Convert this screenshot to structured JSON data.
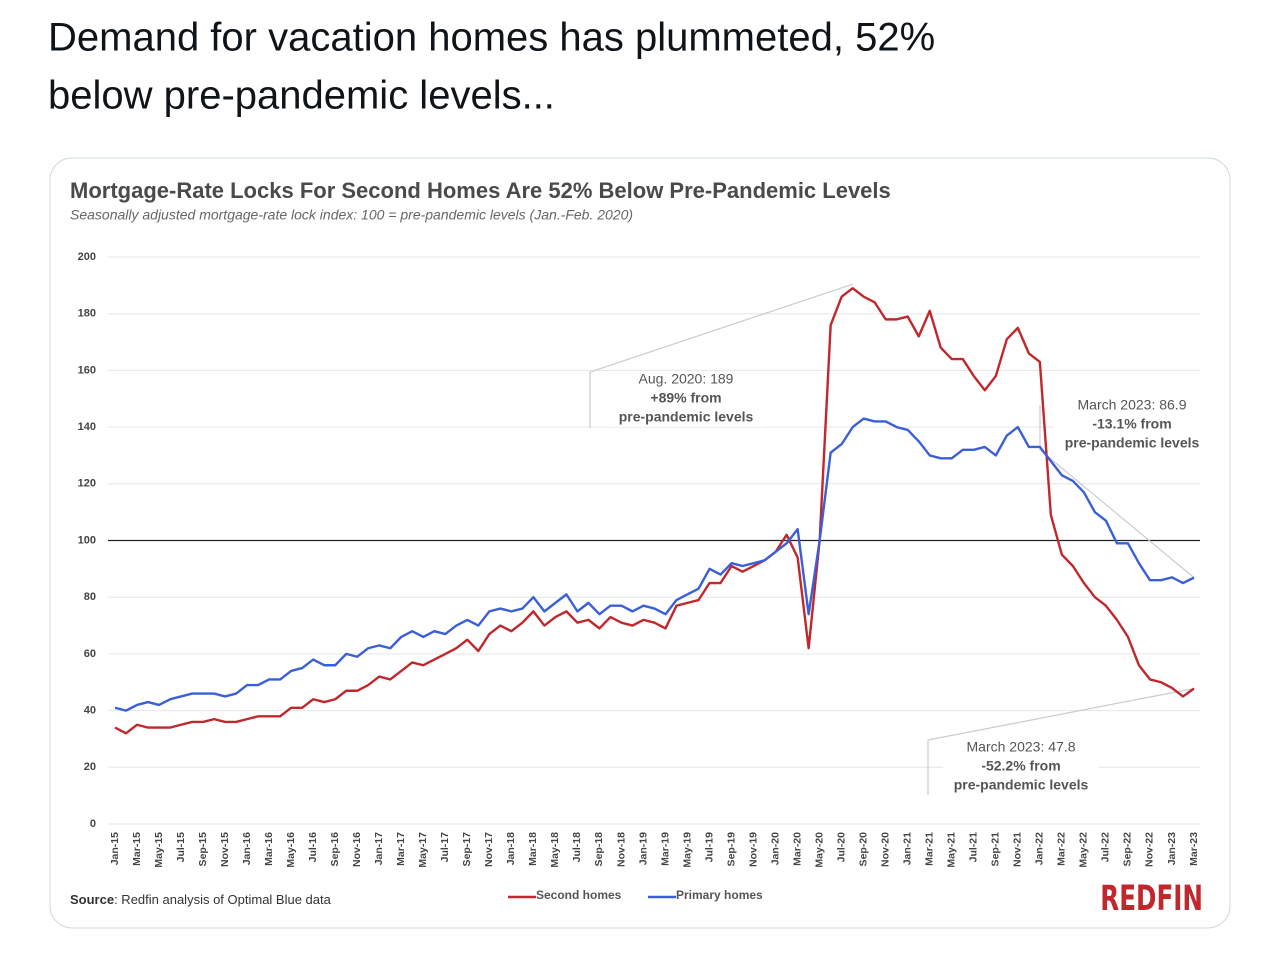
{
  "post": {
    "text": [
      "Demand for vacation homes has plummeted, 52%",
      "below pre-pandemic levels..."
    ]
  },
  "chart_data": {
    "type": "line",
    "title": "Mortgage-Rate Locks For Second Homes Are 52% Below Pre-Pandemic Levels",
    "subtitle": "Seasonally adjusted mortgage-rate lock index: 100 = pre-pandemic levels (Jan.-Feb. 2020)",
    "categories": [
      "Jan-15",
      null,
      "Mar-15",
      null,
      "May-15",
      null,
      "Jul-15",
      null,
      "Sep-15",
      null,
      "Nov-15",
      null,
      "Jan-16",
      null,
      "Mar-16",
      null,
      "May-16",
      null,
      "Jul-16",
      null,
      "Sep-16",
      null,
      "Nov-16",
      null,
      "Jan-17",
      null,
      "Mar-17",
      null,
      "May-17",
      null,
      "Jul-17",
      null,
      "Sep-17",
      null,
      "Nov-17",
      null,
      "Jan-18",
      null,
      "Mar-18",
      null,
      "May-18",
      null,
      "Jul-18",
      null,
      "Sep-18",
      null,
      "Nov-18",
      null,
      "Jan-19",
      null,
      "Mar-19",
      null,
      "May-19",
      null,
      "Jul-19",
      null,
      "Sep-19",
      null,
      "Nov-19",
      null,
      "Jan-20",
      null,
      "Mar-20",
      null,
      "May-20",
      null,
      "Jul-20",
      null,
      "Sep-20",
      null,
      "Nov-20",
      null,
      "Jan-21",
      null,
      "Mar-21",
      null,
      "May-21",
      null,
      "Jul-21",
      null,
      "Sep-21",
      null,
      "Nov-21",
      null,
      "Jan-22",
      null,
      "Mar-22",
      null,
      "May-22",
      null,
      "Jul-22",
      null,
      "Sep-22",
      null,
      "Nov-22",
      null,
      "Jan-23",
      null,
      "Mar-23"
    ],
    "series": [
      {
        "name": "Second homes",
        "color": "#c0282d",
        "values": [
          34,
          32,
          35,
          34,
          34,
          34,
          35,
          36,
          36,
          37,
          36,
          36,
          37,
          38,
          38,
          38,
          41,
          41,
          44,
          43,
          44,
          47,
          47,
          49,
          52,
          51,
          54,
          57,
          56,
          58,
          60,
          62,
          65,
          61,
          67,
          70,
          68,
          71,
          75,
          70,
          73,
          75,
          71,
          72,
          69,
          73,
          71,
          70,
          72,
          71,
          69,
          77,
          78,
          79,
          85,
          85,
          91,
          89,
          91,
          93,
          96,
          102,
          94,
          62,
          100,
          176,
          186,
          189,
          186,
          184,
          178,
          178,
          179,
          172,
          181,
          168,
          164,
          164,
          158,
          153,
          158,
          171,
          175,
          166,
          163,
          109,
          95,
          91,
          85,
          80,
          77,
          72,
          66,
          56,
          51,
          50,
          48,
          45,
          47.8
        ]
      },
      {
        "name": "Primary homes",
        "color": "#3a5fd9",
        "values": [
          41,
          40,
          42,
          43,
          42,
          44,
          45,
          46,
          46,
          46,
          45,
          46,
          49,
          49,
          51,
          51,
          54,
          55,
          58,
          56,
          56,
          60,
          59,
          62,
          63,
          62,
          66,
          68,
          66,
          68,
          67,
          70,
          72,
          70,
          75,
          76,
          75,
          76,
          80,
          75,
          78,
          81,
          75,
          78,
          74,
          77,
          77,
          75,
          77,
          76,
          74,
          79,
          81,
          83,
          90,
          88,
          92,
          91,
          92,
          93,
          96,
          99,
          104,
          74,
          100,
          131,
          134,
          140,
          143,
          142,
          142,
          140,
          139,
          135,
          130,
          129,
          129,
          132,
          132,
          133,
          130,
          137,
          140,
          133,
          133,
          128,
          123,
          121,
          117,
          110,
          107,
          99,
          99,
          92,
          86,
          86,
          87,
          85,
          86.9
        ]
      }
    ],
    "ylim": [
      0,
      200
    ],
    "yticks": [
      0,
      20,
      40,
      60,
      80,
      100,
      120,
      140,
      160,
      180,
      200
    ],
    "grid": true,
    "reference_line": 100,
    "annotations": [
      [
        "Aug. 2020: 189",
        "+89% from",
        "pre-pandemic levels"
      ],
      [
        "March 2023: 86.9",
        "-13.1% from",
        "pre-pandemic levels"
      ],
      [
        "March 2023: 47.8",
        "-52.2% from",
        "pre-pandemic levels"
      ]
    ],
    "source": [
      "Source",
      ": Redfin analysis of Optimal Blue data"
    ],
    "logo": "REDFIN",
    "legend": "bottom"
  }
}
